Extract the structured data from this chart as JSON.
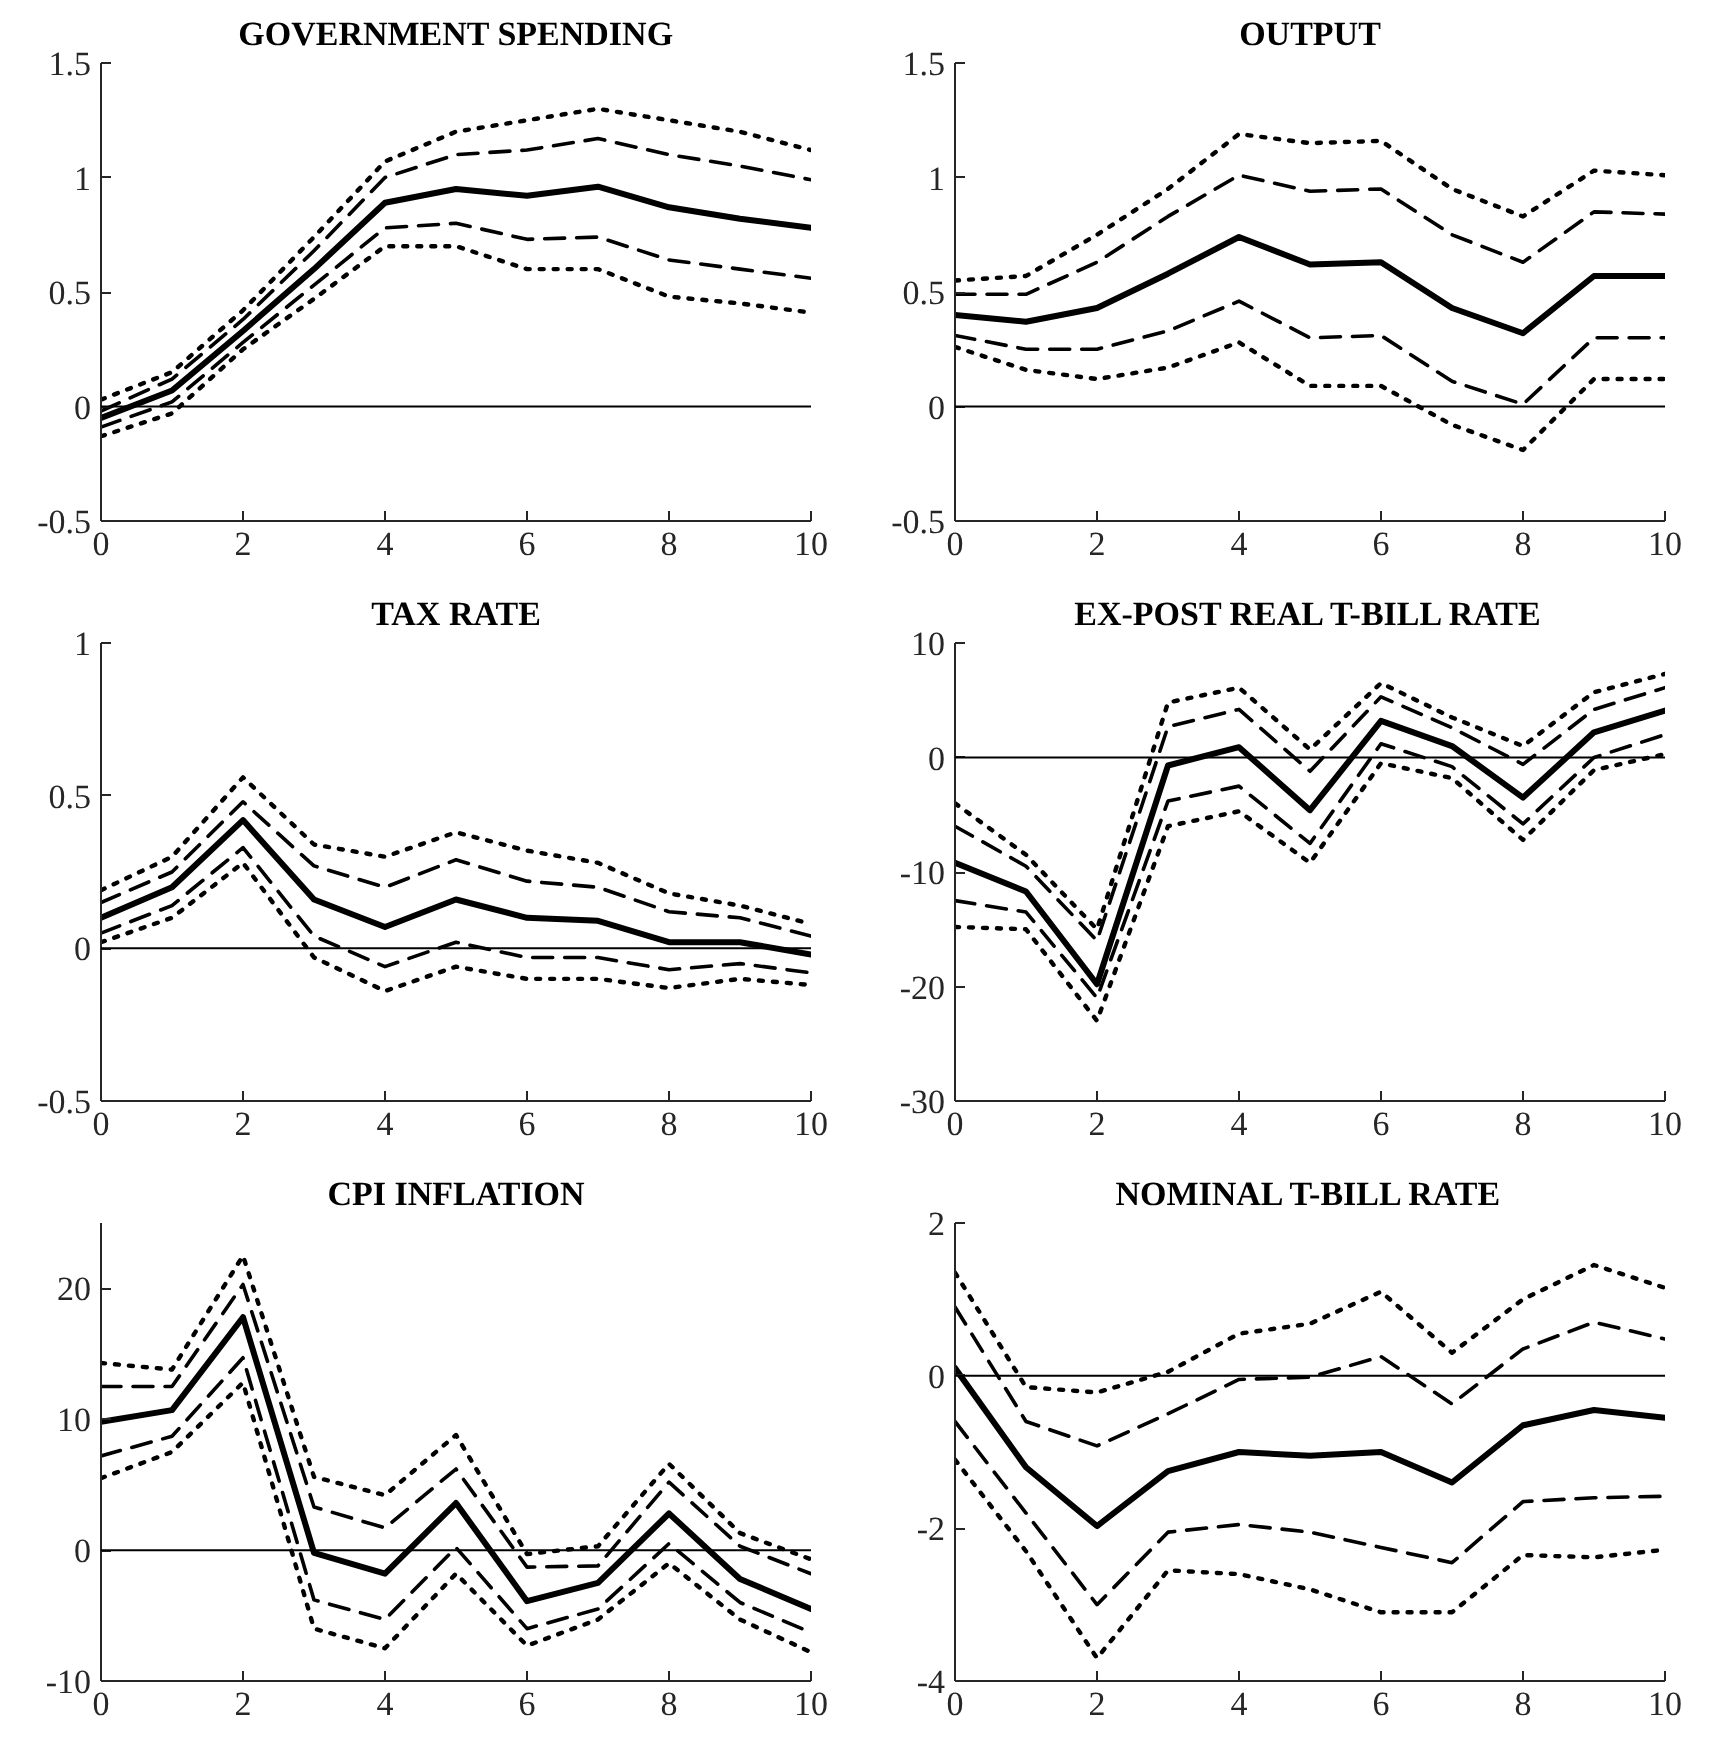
{
  "chart_data": [
    {
      "type": "line",
      "title": "GOVERNMENT SPENDING",
      "x": [
        0,
        1,
        2,
        3,
        4,
        5,
        6,
        7,
        8,
        9,
        10
      ],
      "xlim": [
        0,
        10
      ],
      "xticks": [
        0,
        2,
        4,
        6,
        8,
        10
      ],
      "ylim": [
        -0.5,
        1.5
      ],
      "yticks": [
        -0.5,
        0,
        0.5,
        1,
        1.5
      ],
      "grid": false,
      "ref_lines": [
        {
          "axis": "y",
          "value": 0,
          "color": "#000000",
          "line_style": "solid"
        }
      ],
      "series": [
        {
          "color": "#000000",
          "line_style": "dotted",
          "values": [
            0.03,
            0.15,
            0.42,
            0.74,
            1.07,
            1.2,
            1.25,
            1.3,
            1.25,
            1.2,
            1.12
          ]
        },
        {
          "color": "#000000",
          "line_style": "dashed",
          "values": [
            -0.02,
            0.12,
            0.38,
            0.68,
            1.0,
            1.1,
            1.12,
            1.17,
            1.1,
            1.05,
            0.99
          ]
        },
        {
          "color": "#000000",
          "line_style": "solid",
          "values": [
            -0.05,
            0.07,
            0.33,
            0.6,
            0.89,
            0.95,
            0.92,
            0.96,
            0.87,
            0.82,
            0.78
          ]
        },
        {
          "color": "#000000",
          "line_style": "dashed",
          "values": [
            -0.09,
            0.02,
            0.28,
            0.53,
            0.78,
            0.8,
            0.73,
            0.74,
            0.64,
            0.6,
            0.56
          ]
        },
        {
          "color": "#000000",
          "line_style": "dotted",
          "values": [
            -0.13,
            -0.03,
            0.25,
            0.47,
            0.7,
            0.7,
            0.6,
            0.6,
            0.48,
            0.45,
            0.41
          ]
        }
      ]
    },
    {
      "type": "line",
      "title": "OUTPUT",
      "x": [
        0,
        1,
        2,
        3,
        4,
        5,
        6,
        7,
        8,
        9,
        10
      ],
      "xlim": [
        0,
        10
      ],
      "xticks": [
        0,
        2,
        4,
        6,
        8,
        10
      ],
      "ylim": [
        -0.5,
        1.5
      ],
      "yticks": [
        -0.5,
        0,
        0.5,
        1,
        1.5
      ],
      "grid": false,
      "ref_lines": [
        {
          "axis": "y",
          "value": 0,
          "color": "#000000",
          "line_style": "solid"
        }
      ],
      "series": [
        {
          "color": "#000000",
          "line_style": "dotted",
          "values": [
            0.55,
            0.57,
            0.75,
            0.95,
            1.19,
            1.15,
            1.16,
            0.95,
            0.83,
            1.03,
            1.01
          ]
        },
        {
          "color": "#000000",
          "line_style": "dashed",
          "values": [
            0.49,
            0.49,
            0.63,
            0.83,
            1.01,
            0.94,
            0.95,
            0.75,
            0.63,
            0.85,
            0.84
          ]
        },
        {
          "color": "#000000",
          "line_style": "solid",
          "values": [
            0.4,
            0.37,
            0.43,
            0.58,
            0.74,
            0.62,
            0.63,
            0.43,
            0.32,
            0.57,
            0.57
          ]
        },
        {
          "color": "#000000",
          "line_style": "dashed",
          "values": [
            0.31,
            0.25,
            0.25,
            0.33,
            0.46,
            0.3,
            0.31,
            0.11,
            0.01,
            0.3,
            0.3
          ]
        },
        {
          "color": "#000000",
          "line_style": "dotted",
          "values": [
            0.26,
            0.16,
            0.12,
            0.17,
            0.28,
            0.09,
            0.09,
            -0.08,
            -0.19,
            0.12,
            0.12
          ]
        }
      ]
    },
    {
      "type": "line",
      "title": "TAX RATE",
      "x": [
        0,
        1,
        2,
        3,
        4,
        5,
        6,
        7,
        8,
        9,
        10
      ],
      "xlim": [
        0,
        10
      ],
      "xticks": [
        0,
        2,
        4,
        6,
        8,
        10
      ],
      "ylim": [
        -0.5,
        1
      ],
      "yticks": [
        -0.5,
        0,
        0.5,
        1
      ],
      "grid": false,
      "ref_lines": [
        {
          "axis": "y",
          "value": 0,
          "color": "#000000",
          "line_style": "solid"
        }
      ],
      "series": [
        {
          "color": "#000000",
          "line_style": "dotted",
          "values": [
            0.19,
            0.3,
            0.56,
            0.34,
            0.3,
            0.38,
            0.32,
            0.28,
            0.18,
            0.14,
            0.08
          ]
        },
        {
          "color": "#000000",
          "line_style": "dashed",
          "values": [
            0.15,
            0.25,
            0.48,
            0.27,
            0.2,
            0.29,
            0.22,
            0.2,
            0.12,
            0.1,
            0.04
          ]
        },
        {
          "color": "#000000",
          "line_style": "solid",
          "values": [
            0.1,
            0.2,
            0.42,
            0.16,
            0.07,
            0.16,
            0.1,
            0.09,
            0.02,
            0.02,
            -0.02
          ]
        },
        {
          "color": "#000000",
          "line_style": "dashed",
          "values": [
            0.05,
            0.14,
            0.33,
            0.04,
            -0.06,
            0.02,
            -0.03,
            -0.03,
            -0.07,
            -0.05,
            -0.08
          ]
        },
        {
          "color": "#000000",
          "line_style": "dotted",
          "values": [
            0.02,
            0.1,
            0.28,
            -0.03,
            -0.14,
            -0.06,
            -0.1,
            -0.1,
            -0.13,
            -0.1,
            -0.12
          ]
        }
      ]
    },
    {
      "type": "line",
      "title": "EX-POST REAL T-BILL RATE",
      "x": [
        0,
        1,
        2,
        3,
        4,
        5,
        6,
        7,
        8,
        9,
        10
      ],
      "xlim": [
        0,
        10
      ],
      "xticks": [
        0,
        2,
        4,
        6,
        8,
        10
      ],
      "ylim": [
        -30,
        10
      ],
      "yticks": [
        -30,
        -20,
        -10,
        0,
        10
      ],
      "grid": false,
      "ref_lines": [
        {
          "axis": "y",
          "value": 0,
          "color": "#000000",
          "line_style": "solid"
        }
      ],
      "series": [
        {
          "color": "#000000",
          "line_style": "dotted",
          "values": [
            -4,
            -8.5,
            -15,
            4.8,
            6.1,
            0.7,
            6.5,
            3.5,
            1,
            5.7,
            7.3
          ]
        },
        {
          "color": "#000000",
          "line_style": "dashed",
          "values": [
            -6,
            -9.5,
            -16,
            2.7,
            4.2,
            -1.2,
            5.3,
            2.6,
            -0.6,
            4.2,
            6.1
          ]
        },
        {
          "color": "#000000",
          "line_style": "solid",
          "values": [
            -9.2,
            -11.7,
            -19.8,
            -0.7,
            0.9,
            -4.6,
            3.2,
            1,
            -3.5,
            2.2,
            4.1
          ]
        },
        {
          "color": "#000000",
          "line_style": "dashed",
          "values": [
            -12.5,
            -13.5,
            -21,
            -3.8,
            -2.5,
            -7.5,
            1.2,
            -0.8,
            -5.8,
            0,
            2
          ]
        },
        {
          "color": "#000000",
          "line_style": "dotted",
          "values": [
            -14.8,
            -15,
            -23,
            -6,
            -4.7,
            -9.2,
            -0.5,
            -1.8,
            -7.2,
            -1.1,
            0.3
          ]
        }
      ]
    },
    {
      "type": "line",
      "title": "CPI INFLATION",
      "x": [
        0,
        1,
        2,
        3,
        4,
        5,
        6,
        7,
        8,
        9,
        10
      ],
      "xlim": [
        0,
        10
      ],
      "xticks": [
        0,
        2,
        4,
        6,
        8,
        10
      ],
      "ylim": [
        -10,
        25
      ],
      "yticks": [
        -10,
        0,
        10,
        20
      ],
      "grid": false,
      "ref_lines": [
        {
          "axis": "y",
          "value": 0,
          "color": "#000000",
          "line_style": "solid"
        }
      ],
      "series": [
        {
          "color": "#000000",
          "line_style": "dotted",
          "values": [
            14.3,
            13.8,
            22.5,
            5.6,
            4.2,
            8.8,
            -0.3,
            0.3,
            6.6,
            1.3,
            -0.7
          ]
        },
        {
          "color": "#000000",
          "line_style": "dashed",
          "values": [
            12.5,
            12.5,
            20.3,
            3.3,
            1.7,
            6.2,
            -1.3,
            -1.2,
            5.2,
            0.3,
            -1.8
          ]
        },
        {
          "color": "#000000",
          "line_style": "solid",
          "values": [
            9.8,
            10.7,
            17.8,
            -0.2,
            -1.8,
            3.6,
            -3.9,
            -2.5,
            2.8,
            -2.2,
            -4.5
          ]
        },
        {
          "color": "#000000",
          "line_style": "dashed",
          "values": [
            7.2,
            8.7,
            14.7,
            -3.8,
            -5.3,
            0.2,
            -6,
            -4.5,
            0.5,
            -4,
            -6.3
          ]
        },
        {
          "color": "#000000",
          "line_style": "dotted",
          "values": [
            5.5,
            7.5,
            12.8,
            -6,
            -7.5,
            -1.8,
            -7.3,
            -5.3,
            -1,
            -5.3,
            -7.8
          ]
        }
      ]
    },
    {
      "type": "line",
      "title": "NOMINAL T-BILL RATE",
      "x": [
        0,
        1,
        2,
        3,
        4,
        5,
        6,
        7,
        8,
        9,
        10
      ],
      "xlim": [
        0,
        10
      ],
      "xticks": [
        0,
        2,
        4,
        6,
        8,
        10
      ],
      "ylim": [
        -4,
        2
      ],
      "yticks": [
        -4,
        -2,
        0,
        2
      ],
      "grid": false,
      "ref_lines": [
        {
          "axis": "y",
          "value": 0,
          "color": "#000000",
          "line_style": "solid"
        }
      ],
      "series": [
        {
          "color": "#000000",
          "line_style": "dotted",
          "values": [
            1.35,
            -0.15,
            -0.22,
            0.05,
            0.55,
            0.68,
            1.1,
            0.3,
            1.0,
            1.45,
            1.15
          ]
        },
        {
          "color": "#000000",
          "line_style": "dashed",
          "values": [
            0.9,
            -0.6,
            -0.92,
            -0.5,
            -0.05,
            -0.02,
            0.25,
            -0.37,
            0.35,
            0.7,
            0.48
          ]
        },
        {
          "color": "#000000",
          "line_style": "solid",
          "values": [
            0.1,
            -1.2,
            -1.97,
            -1.25,
            -1.0,
            -1.05,
            -1.0,
            -1.4,
            -0.65,
            -0.45,
            -0.55
          ]
        },
        {
          "color": "#000000",
          "line_style": "dashed",
          "values": [
            -0.6,
            -1.8,
            -3.0,
            -2.05,
            -1.95,
            -2.05,
            -2.25,
            -2.45,
            -1.65,
            -1.6,
            -1.58
          ]
        },
        {
          "color": "#000000",
          "line_style": "dotted",
          "values": [
            -1.1,
            -2.3,
            -3.7,
            -2.55,
            -2.6,
            -2.8,
            -3.1,
            -3.1,
            -2.35,
            -2.38,
            -2.28
          ]
        }
      ]
    }
  ]
}
